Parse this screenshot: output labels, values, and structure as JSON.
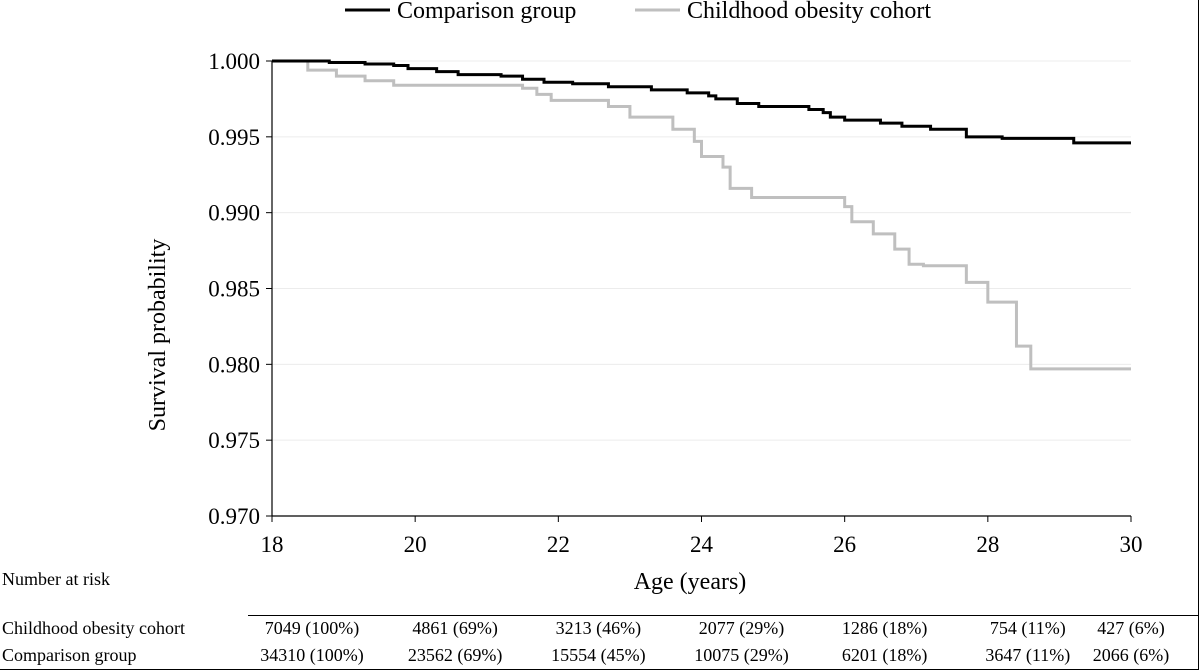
{
  "chart_data": {
    "type": "line",
    "step": true,
    "xlabel": "Age (years)",
    "ylabel": "Survival probability",
    "xlim": [
      18,
      30
    ],
    "ylim": [
      0.97,
      1.0
    ],
    "xticks": [
      18,
      20,
      22,
      24,
      26,
      28,
      30
    ],
    "yticks": [
      0.97,
      0.975,
      0.98,
      0.985,
      0.99,
      0.995,
      1.0
    ],
    "grid": "horizontal",
    "legend": "top",
    "series": [
      {
        "name": "Comparison group",
        "color": "#000000",
        "x": [
          18,
          18.8,
          19.3,
          19.7,
          19.9,
          20.3,
          20.6,
          21.2,
          21.5,
          21.8,
          22.2,
          22.7,
          23.3,
          23.8,
          24.1,
          24.2,
          24.5,
          24.8,
          25.5,
          25.7,
          25.8,
          26.0,
          26.5,
          26.8,
          27.2,
          27.7,
          28.2,
          29.2,
          30
        ],
        "y": [
          1.0,
          0.9999,
          0.9998,
          0.9997,
          0.9995,
          0.9993,
          0.9991,
          0.999,
          0.9988,
          0.9986,
          0.9985,
          0.9983,
          0.9981,
          0.9979,
          0.9977,
          0.9975,
          0.9972,
          0.997,
          0.9968,
          0.9966,
          0.9963,
          0.9961,
          0.9959,
          0.9957,
          0.9955,
          0.995,
          0.9949,
          0.9946,
          0.9946
        ]
      },
      {
        "name": "Childhood obesity cohort",
        "color": "#bfbfbf",
        "x": [
          18,
          18.5,
          18.9,
          19.3,
          19.7,
          21.5,
          21.7,
          21.9,
          22.7,
          23.0,
          23.6,
          23.9,
          24.0,
          24.3,
          24.4,
          24.7,
          26.0,
          26.1,
          26.4,
          26.7,
          26.9,
          27.1,
          27.7,
          28.0,
          28.4,
          28.6,
          30
        ],
        "y": [
          1.0,
          0.9994,
          0.999,
          0.9987,
          0.9984,
          0.9982,
          0.9978,
          0.9974,
          0.997,
          0.9963,
          0.9955,
          0.9947,
          0.9937,
          0.993,
          0.9916,
          0.991,
          0.9904,
          0.9894,
          0.9886,
          0.9876,
          0.9866,
          0.9865,
          0.9854,
          0.9841,
          0.9812,
          0.9797,
          0.9797
        ]
      }
    ]
  },
  "risk_table": {
    "title": "Number at risk",
    "ages": [
      18,
      20,
      22,
      24,
      26,
      28,
      30
    ],
    "rows": [
      {
        "label": "Childhood obesity cohort",
        "values": [
          "7049 (100%)",
          "4861 (69%)",
          "3213 (46%)",
          "2077 (29%)",
          "1286 (18%)",
          "754 (11%)",
          "427 (6%)"
        ]
      },
      {
        "label": "Comparison group",
        "values": [
          "34310 (100%)",
          "23562 (69%)",
          "15554 (45%)",
          "10075 (29%)",
          "6201 (18%)",
          "3647 (11%)",
          "2066 (6%)"
        ]
      }
    ]
  }
}
